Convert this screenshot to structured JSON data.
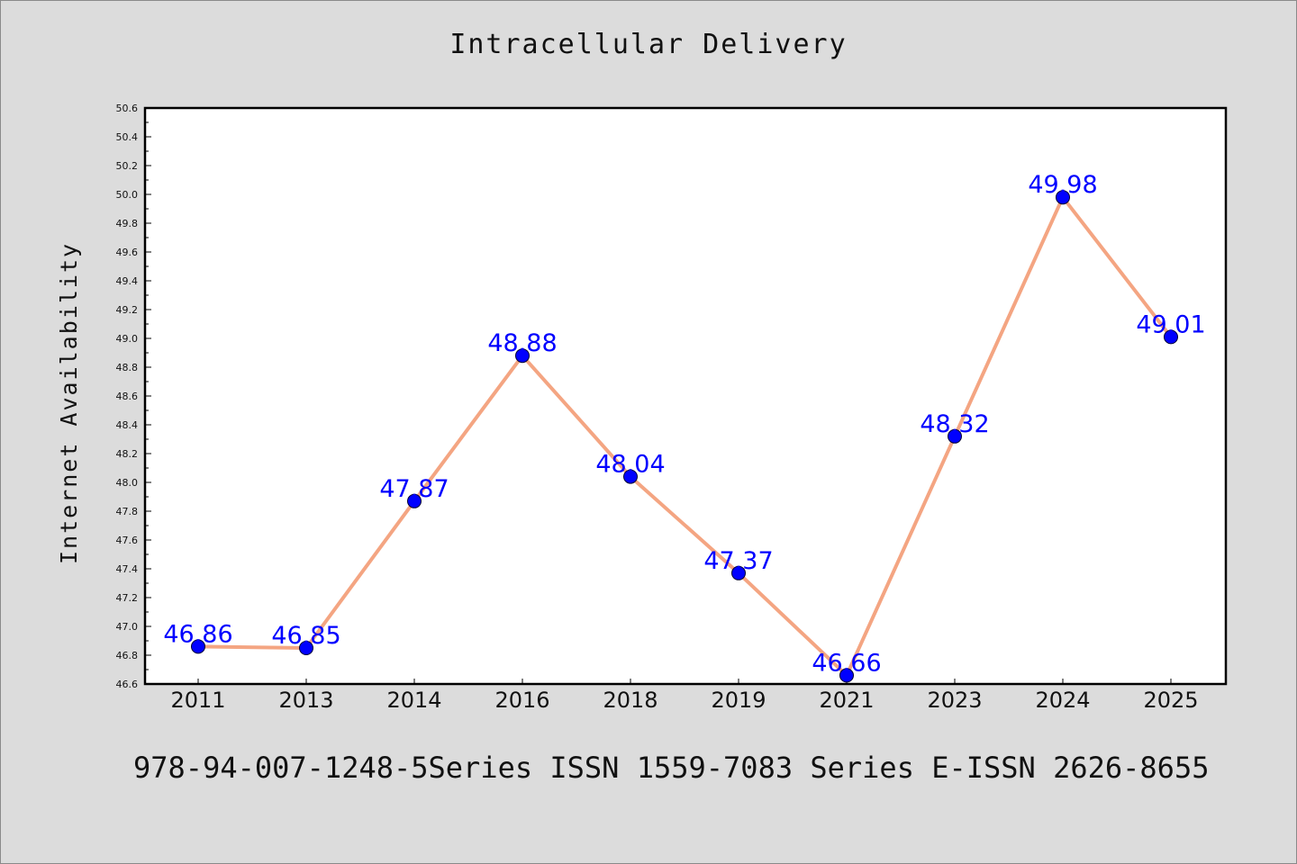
{
  "page": {
    "footer_text": "978-94-007-1248-5Series ISSN 1559-7083 Series E-ISSN 2626-8655"
  },
  "chart_data": {
    "type": "line",
    "title": "Intracellular Delivery",
    "xlabel": "",
    "ylabel": "Internet Availability",
    "categories": [
      "2011",
      "2013",
      "2014",
      "2016",
      "2018",
      "2019",
      "2021",
      "2023",
      "2024",
      "2025"
    ],
    "series": [
      {
        "values": [
          46.86,
          46.85,
          47.87,
          48.88,
          48.04,
          47.37,
          46.66,
          48.32,
          49.98,
          49.01
        ],
        "line_color": "#f4a582",
        "marker_color": "#0000ff",
        "label_color": "#0000ff"
      }
    ],
    "ylim": [
      46.6,
      50.6
    ],
    "ytick_step": 0.2,
    "data_labels": true,
    "grid": false,
    "legend": "none"
  }
}
